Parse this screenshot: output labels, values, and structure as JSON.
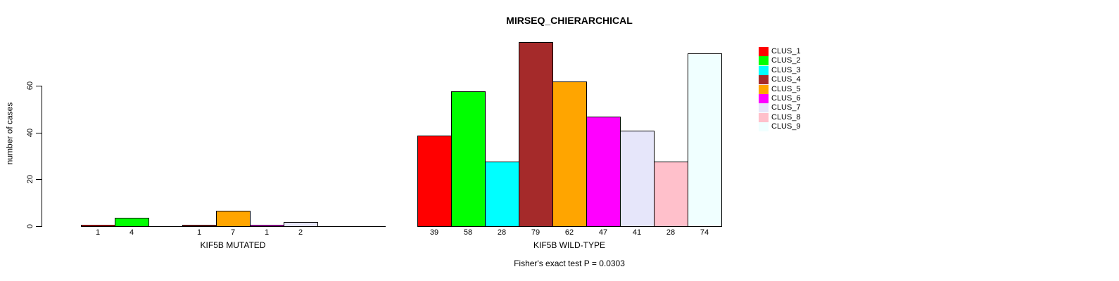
{
  "chart_data": {
    "type": "bar",
    "title": "MIRSEQ_CHIERARCHICAL",
    "ylabel": "number of cases",
    "yticks": [
      0,
      20,
      40,
      60
    ],
    "ylim": [
      0,
      79
    ],
    "grid": false,
    "legend_position": "right",
    "axis_color": "#000000",
    "background_color": "#ffffff",
    "categories": [
      "CLUS_1",
      "CLUS_2",
      "CLUS_3",
      "CLUS_4",
      "CLUS_5",
      "CLUS_6",
      "CLUS_7",
      "CLUS_8",
      "CLUS_9"
    ],
    "cluster_colors": [
      "#ff0000",
      "#00ff00",
      "#00ffff",
      "#a52a2a",
      "#ffa500",
      "#ff00ff",
      "#e6e6fa",
      "#ffc0cb",
      "#f0ffff"
    ],
    "groups": [
      {
        "label": "KIF5B MUTATED",
        "values": [
          1,
          4,
          0,
          1,
          7,
          1,
          2,
          0,
          0
        ]
      },
      {
        "label": "KIF5B WILD-TYPE",
        "values": [
          39,
          58,
          28,
          79,
          62,
          47,
          41,
          28,
          74
        ]
      }
    ],
    "annotation": "Fisher's exact test P = 0.0303"
  }
}
